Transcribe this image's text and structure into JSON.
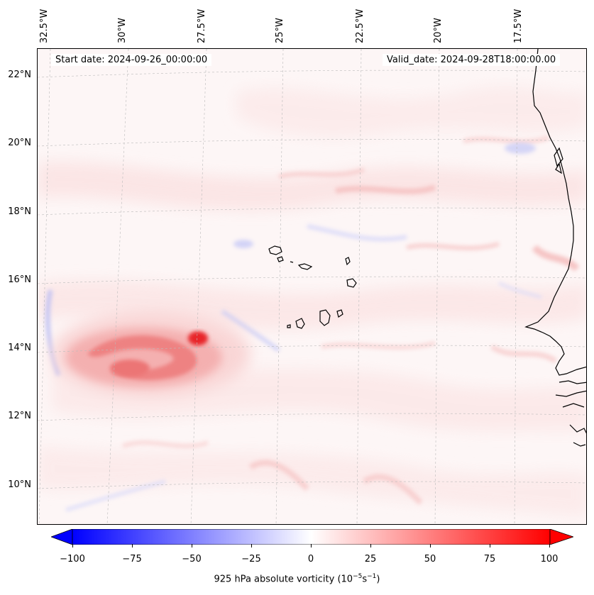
{
  "map": {
    "info": {
      "start_date": "Start date: 2024-09-26_00:00:00",
      "valid_date": "Valid_date: 2024-09-28T18:00:00.00"
    },
    "lon_labels": [
      "32.5°W",
      "30°W",
      "27.5°W",
      "25°W",
      "22.5°W",
      "20°W",
      "17.5°W"
    ],
    "lat_labels": [
      "22°N",
      "20°N",
      "18°N",
      "16°N",
      "14°N",
      "12°N",
      "10°N"
    ],
    "colorbar": {
      "ticks": [
        "−100",
        "−75",
        "−50",
        "−25",
        "0",
        "25",
        "50",
        "75",
        "100"
      ],
      "label": "925 hPa absolute vorticity (10",
      "label_exp1": "−5",
      "label_mid": "s",
      "label_exp2": "−1",
      "label_end": ")",
      "min": -100,
      "max": 100,
      "negative_color": "#0000ff",
      "positive_color": "#ff0000"
    },
    "features": {
      "vortex_max_color": "#e8262a",
      "background_color": "#fdf6f6"
    }
  }
}
